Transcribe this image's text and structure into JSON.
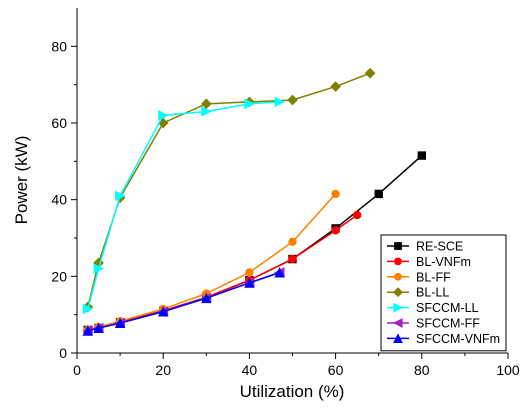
{
  "chart_data": {
    "type": "line",
    "title": "",
    "xlabel": "Utilization (%)",
    "ylabel": "Power (kW)",
    "xlim": [
      0,
      100
    ],
    "ylim": [
      0,
      90
    ],
    "xticks": [
      0,
      20,
      40,
      60,
      80,
      100
    ],
    "yticks": [
      0,
      20,
      40,
      60,
      80
    ],
    "grid": false,
    "legend_position": "bottom-right",
    "series": [
      {
        "name": "RE-SCE",
        "color": "#000000",
        "marker": "square",
        "points": [
          [
            2.5,
            6.0
          ],
          [
            5,
            6.5
          ],
          [
            10,
            8.0
          ],
          [
            20,
            11.0
          ],
          [
            30,
            14.5
          ],
          [
            40,
            19.0
          ],
          [
            50,
            24.5
          ],
          [
            60,
            32.5
          ],
          [
            70,
            41.5
          ],
          [
            80,
            51.5
          ]
        ]
      },
      {
        "name": "BL-VNFm",
        "color": "#ff0000",
        "marker": "circle",
        "points": [
          [
            2.5,
            6.0
          ],
          [
            5,
            6.5
          ],
          [
            10,
            8.0
          ],
          [
            20,
            11.0
          ],
          [
            30,
            14.5
          ],
          [
            40,
            19.0
          ],
          [
            50,
            24.5
          ],
          [
            60,
            32.0
          ],
          [
            65,
            36.0
          ]
        ]
      },
      {
        "name": "BL-FF",
        "color": "#ff8000",
        "marker": "circle",
        "points": [
          [
            2.5,
            6.0
          ],
          [
            5,
            6.8
          ],
          [
            10,
            8.3
          ],
          [
            20,
            11.5
          ],
          [
            30,
            15.5
          ],
          [
            40,
            21.0
          ],
          [
            50,
            29.0
          ],
          [
            60,
            41.5
          ]
        ]
      },
      {
        "name": "BL-LL",
        "color": "#808000",
        "marker": "diamond",
        "points": [
          [
            2.5,
            12.0
          ],
          [
            5,
            23.5
          ],
          [
            10,
            40.5
          ],
          [
            20,
            60.0
          ],
          [
            30,
            65.0
          ],
          [
            40,
            65.5
          ],
          [
            50,
            66.0
          ],
          [
            60,
            69.5
          ],
          [
            68,
            73.0
          ]
        ]
      },
      {
        "name": "SFCCM-LL",
        "color": "#00ffff",
        "marker": "triangle-right",
        "points": [
          [
            2.5,
            11.5
          ],
          [
            5,
            22.0
          ],
          [
            10,
            41.0
          ],
          [
            20,
            62.0
          ],
          [
            30,
            63.0
          ],
          [
            40,
            65.0
          ],
          [
            47,
            65.5
          ]
        ]
      },
      {
        "name": "SFCCM-FF",
        "color": "#a020c0",
        "marker": "triangle-left",
        "points": [
          [
            2.5,
            5.8
          ],
          [
            5,
            6.5
          ],
          [
            10,
            7.8
          ],
          [
            20,
            10.8
          ],
          [
            30,
            14.3
          ],
          [
            40,
            18.3
          ],
          [
            47,
            21.0
          ]
        ]
      },
      {
        "name": "SFCCM-VNFm",
        "color": "#0000ff",
        "marker": "triangle-up",
        "points": [
          [
            2.5,
            5.8
          ],
          [
            5,
            6.5
          ],
          [
            10,
            7.8
          ],
          [
            20,
            10.8
          ],
          [
            30,
            14.3
          ],
          [
            40,
            18.3
          ],
          [
            47,
            21.0
          ]
        ]
      }
    ]
  }
}
